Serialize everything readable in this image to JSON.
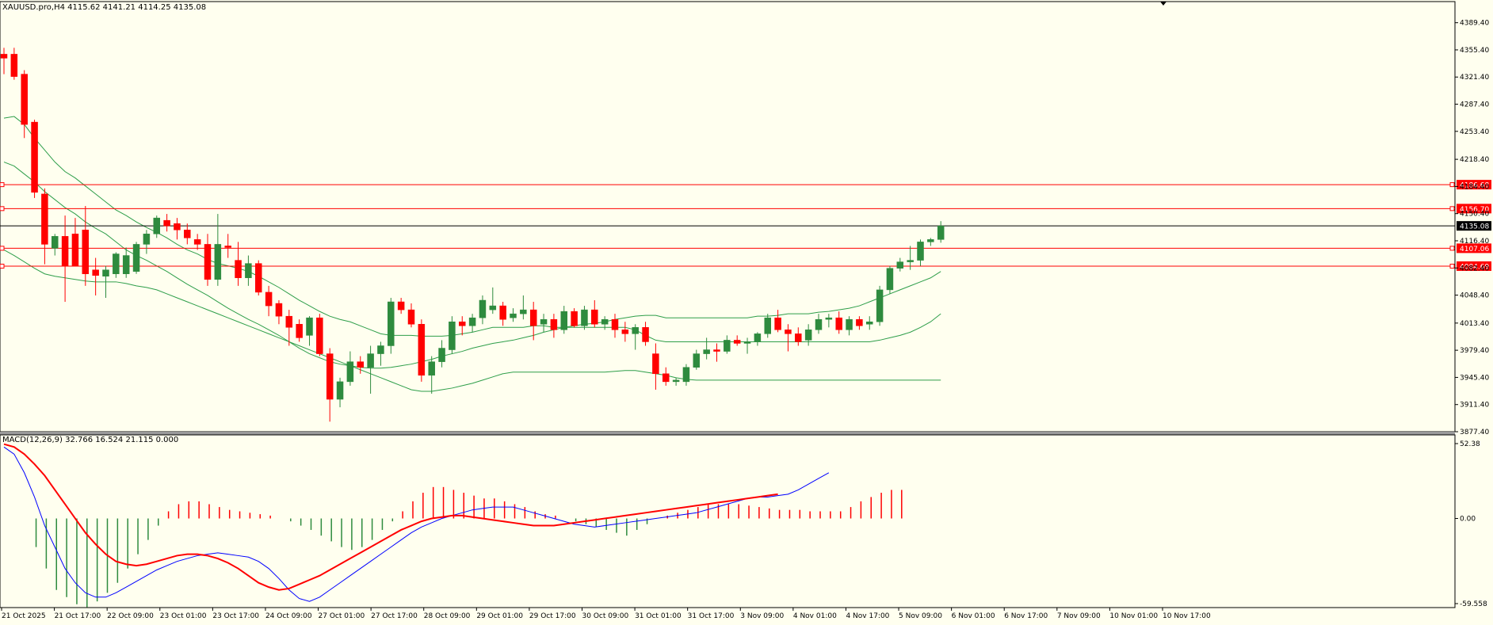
{
  "chart_header": {
    "title": "XAUUSD.pro,H4  4115.62 4141.21 4114.25 4135.08"
  },
  "indicator_header": {
    "title": "MACD(12,26,9) 32.766 16.524 21.115 0.000"
  },
  "colors": {
    "background": "#ffffef",
    "bull": "#2e8b3e",
    "bear": "#ff0000",
    "bands": "#2e9e4a",
    "level_line": "#ff0000",
    "macd_line": "#0000ff",
    "signal_line": "#ff0000",
    "current_price_line": "#000000"
  },
  "chart_data": [
    {
      "type": "candlestick",
      "symbol": "XAUUSD.pro",
      "timeframe": "H4",
      "ohlc_current": {
        "open": 4115.62,
        "high": 4141.21,
        "low": 4114.25,
        "close": 4135.08
      },
      "ylim": [
        3877.4,
        4398.0
      ],
      "price_ticks": [
        "4389.40",
        "4355.40",
        "4321.40",
        "4287.40",
        "4253.40",
        "4218.40",
        "4184.40",
        "4150.40",
        "4116.40",
        "4082.40",
        "4048.40",
        "4013.40",
        "3979.40",
        "3945.40",
        "3911.40",
        "3877.40"
      ],
      "levels": [
        {
          "value": 4186.68,
          "label": "4186.68"
        },
        {
          "value": 4156.7,
          "label": "4156.70"
        },
        {
          "value": 4107.06,
          "label": "4107.06"
        },
        {
          "value": 4084.69,
          "label": "4084.69"
        }
      ],
      "current_price": {
        "value": 4135.08,
        "label": "4135.08"
      },
      "time_labels": [
        "21 Oct 2025",
        "21 Oct 17:00",
        "22 Oct 09:00",
        "23 Oct 01:00",
        "23 Oct 17:00",
        "24 Oct 09:00",
        "27 Oct 01:00",
        "27 Oct 17:00",
        "28 Oct 09:00",
        "29 Oct 01:00",
        "29 Oct 17:00",
        "30 Oct 09:00",
        "31 Oct 01:00",
        "31 Oct 17:00",
        "3 Nov 09:00",
        "4 Nov 01:00",
        "4 Nov 17:00",
        "5 Nov 09:00",
        "6 Nov 01:00",
        "6 Nov 17:00",
        "7 Nov 09:00",
        "10 Nov 01:00",
        "10 Nov 17:00"
      ],
      "candles": [
        {
          "o": 4350,
          "h": 4358,
          "l": 4325,
          "c": 4345
        },
        {
          "o": 4350,
          "h": 4358,
          "l": 4318,
          "c": 4322
        },
        {
          "o": 4325,
          "h": 4330,
          "l": 4245,
          "c": 4262
        },
        {
          "o": 4265,
          "h": 4268,
          "l": 4170,
          "c": 4177
        },
        {
          "o": 4175,
          "h": 4182,
          "l": 4087,
          "c": 4112
        },
        {
          "o": 4107,
          "h": 4125,
          "l": 4098,
          "c": 4122
        },
        {
          "o": 4122,
          "h": 4148,
          "l": 4040,
          "c": 4085
        },
        {
          "o": 4125,
          "h": 4145,
          "l": 4085,
          "c": 4085
        },
        {
          "o": 4130,
          "h": 4160,
          "l": 4060,
          "c": 4075
        },
        {
          "o": 4080,
          "h": 4095,
          "l": 4048,
          "c": 4073
        },
        {
          "o": 4072,
          "h": 4085,
          "l": 4045,
          "c": 4080
        },
        {
          "o": 4075,
          "h": 4102,
          "l": 4070,
          "c": 4100
        },
        {
          "o": 4075,
          "h": 4108,
          "l": 4070,
          "c": 4098
        },
        {
          "o": 4078,
          "h": 4115,
          "l": 4075,
          "c": 4112
        },
        {
          "o": 4112,
          "h": 4130,
          "l": 4100,
          "c": 4125
        },
        {
          "o": 4125,
          "h": 4148,
          "l": 4120,
          "c": 4145
        },
        {
          "o": 4142,
          "h": 4150,
          "l": 4128,
          "c": 4135
        },
        {
          "o": 4138,
          "h": 4145,
          "l": 4118,
          "c": 4130
        },
        {
          "o": 4130,
          "h": 4138,
          "l": 4112,
          "c": 4120
        },
        {
          "o": 4118,
          "h": 4125,
          "l": 4105,
          "c": 4112
        },
        {
          "o": 4112,
          "h": 4125,
          "l": 4060,
          "c": 4068
        },
        {
          "o": 4068,
          "h": 4150,
          "l": 4060,
          "c": 4112
        },
        {
          "o": 4110,
          "h": 4125,
          "l": 4095,
          "c": 4108
        },
        {
          "o": 4092,
          "h": 4115,
          "l": 4060,
          "c": 4070
        },
        {
          "o": 4070,
          "h": 4098,
          "l": 4060,
          "c": 4088
        },
        {
          "o": 4088,
          "h": 4092,
          "l": 4048,
          "c": 4052
        },
        {
          "o": 4052,
          "h": 4060,
          "l": 4022,
          "c": 4035
        },
        {
          "o": 4038,
          "h": 4042,
          "l": 4012,
          "c": 4022
        },
        {
          "o": 4022,
          "h": 4030,
          "l": 3985,
          "c": 4008
        },
        {
          "o": 4012,
          "h": 4018,
          "l": 3990,
          "c": 3995
        },
        {
          "o": 3998,
          "h": 4022,
          "l": 3985,
          "c": 4020
        },
        {
          "o": 4020,
          "h": 4025,
          "l": 3972,
          "c": 3975
        },
        {
          "o": 3975,
          "h": 3982,
          "l": 3890,
          "c": 3918
        },
        {
          "o": 3918,
          "h": 3945,
          "l": 3908,
          "c": 3940
        },
        {
          "o": 3940,
          "h": 3978,
          "l": 3935,
          "c": 3965
        },
        {
          "o": 3965,
          "h": 3972,
          "l": 3950,
          "c": 3958
        },
        {
          "o": 3958,
          "h": 3985,
          "l": 3925,
          "c": 3975
        },
        {
          "o": 3975,
          "h": 3990,
          "l": 3960,
          "c": 3985
        },
        {
          "o": 3985,
          "h": 4045,
          "l": 3975,
          "c": 4040
        },
        {
          "o": 4040,
          "h": 4045,
          "l": 4025,
          "c": 4030
        },
        {
          "o": 4030,
          "h": 4038,
          "l": 4008,
          "c": 4012
        },
        {
          "o": 4012,
          "h": 4018,
          "l": 3940,
          "c": 3948
        },
        {
          "o": 3948,
          "h": 3972,
          "l": 3925,
          "c": 3965
        },
        {
          "o": 3965,
          "h": 3992,
          "l": 3958,
          "c": 3982
        },
        {
          "o": 3980,
          "h": 4022,
          "l": 3975,
          "c": 4015
        },
        {
          "o": 4015,
          "h": 4022,
          "l": 3998,
          "c": 4010
        },
        {
          "o": 4010,
          "h": 4025,
          "l": 4002,
          "c": 4020
        },
        {
          "o": 4020,
          "h": 4048,
          "l": 4012,
          "c": 4042
        },
        {
          "o": 4030,
          "h": 4058,
          "l": 4025,
          "c": 4035
        },
        {
          "o": 4035,
          "h": 4040,
          "l": 4010,
          "c": 4018
        },
        {
          "o": 4020,
          "h": 4032,
          "l": 4015,
          "c": 4025
        },
        {
          "o": 4025,
          "h": 4048,
          "l": 4018,
          "c": 4030
        },
        {
          "o": 4030,
          "h": 4040,
          "l": 3992,
          "c": 4010
        },
        {
          "o": 4012,
          "h": 4025,
          "l": 4002,
          "c": 4018
        },
        {
          "o": 4018,
          "h": 4025,
          "l": 3995,
          "c": 4005
        },
        {
          "o": 4005,
          "h": 4035,
          "l": 4000,
          "c": 4028
        },
        {
          "o": 4028,
          "h": 4032,
          "l": 4008,
          "c": 4010
        },
        {
          "o": 4010,
          "h": 4035,
          "l": 4005,
          "c": 4030
        },
        {
          "o": 4030,
          "h": 4042,
          "l": 4008,
          "c": 4012
        },
        {
          "o": 4012,
          "h": 4022,
          "l": 4005,
          "c": 4018
        },
        {
          "o": 4018,
          "h": 4025,
          "l": 3995,
          "c": 4005
        },
        {
          "o": 4005,
          "h": 4015,
          "l": 3990,
          "c": 4000
        },
        {
          "o": 4000,
          "h": 4012,
          "l": 3980,
          "c": 4008
        },
        {
          "o": 4008,
          "h": 4015,
          "l": 3985,
          "c": 3990
        },
        {
          "o": 3975,
          "h": 3988,
          "l": 3930,
          "c": 3950
        },
        {
          "o": 3950,
          "h": 3958,
          "l": 3935,
          "c": 3940
        },
        {
          "o": 3940,
          "h": 3945,
          "l": 3935,
          "c": 3942
        },
        {
          "o": 3940,
          "h": 3962,
          "l": 3935,
          "c": 3958
        },
        {
          "o": 3958,
          "h": 3980,
          "l": 3955,
          "c": 3975
        },
        {
          "o": 3975,
          "h": 3995,
          "l": 3968,
          "c": 3980
        },
        {
          "o": 3980,
          "h": 3988,
          "l": 3965,
          "c": 3978
        },
        {
          "o": 3978,
          "h": 3998,
          "l": 3975,
          "c": 3992
        },
        {
          "o": 3992,
          "h": 3998,
          "l": 3985,
          "c": 3988
        },
        {
          "o": 3988,
          "h": 3995,
          "l": 3975,
          "c": 3990
        },
        {
          "o": 3990,
          "h": 4002,
          "l": 3985,
          "c": 4000
        },
        {
          "o": 4000,
          "h": 4025,
          "l": 3995,
          "c": 4020
        },
        {
          "o": 4020,
          "h": 4030,
          "l": 4002,
          "c": 4005
        },
        {
          "o": 4005,
          "h": 4012,
          "l": 3978,
          "c": 4000
        },
        {
          "o": 4000,
          "h": 4008,
          "l": 3985,
          "c": 3990
        },
        {
          "o": 3992,
          "h": 4012,
          "l": 3985,
          "c": 4005
        },
        {
          "o": 4005,
          "h": 4025,
          "l": 4000,
          "c": 4018
        },
        {
          "o": 4018,
          "h": 4025,
          "l": 4008,
          "c": 4020
        },
        {
          "o": 4020,
          "h": 4028,
          "l": 4000,
          "c": 4005
        },
        {
          "o": 4005,
          "h": 4022,
          "l": 3998,
          "c": 4018
        },
        {
          "o": 4018,
          "h": 4022,
          "l": 4005,
          "c": 4010
        },
        {
          "o": 4012,
          "h": 4022,
          "l": 4005,
          "c": 4015
        },
        {
          "o": 4015,
          "h": 4060,
          "l": 4010,
          "c": 4055
        },
        {
          "o": 4055,
          "h": 4085,
          "l": 4050,
          "c": 4082
        },
        {
          "o": 4082,
          "h": 4095,
          "l": 4078,
          "c": 4090
        },
        {
          "o": 4090,
          "h": 4110,
          "l": 4080,
          "c": 4092
        },
        {
          "o": 4092,
          "h": 4118,
          "l": 4085,
          "c": 4115
        },
        {
          "o": 4115,
          "h": 4120,
          "l": 4110,
          "c": 4118
        },
        {
          "o": 4118,
          "h": 4141,
          "l": 4114,
          "c": 4135
        }
      ],
      "bands": {
        "x_step": 2,
        "upper": [
          4270,
          4272,
          4262,
          4245,
          4230,
          4215,
          4203,
          4195,
          4185,
          4175,
          4165,
          4155,
          4148,
          4140,
          4133,
          4127,
          4120,
          4112,
          4105,
          4100,
          4093,
          4088,
          4085,
          4082,
          4078,
          4072,
          4065,
          4058,
          4050,
          4042,
          4035,
          4028,
          4022,
          4018,
          4015,
          4010,
          4005,
          4000,
          3998,
          3998,
          3998,
          3997,
          3997,
          3997,
          3998,
          4000,
          4002,
          4005,
          4008,
          4008,
          4008,
          4008,
          4010,
          4010,
          4008,
          4008,
          4008,
          4008,
          4008,
          4008,
          4008,
          4008,
          4005,
          3998,
          3992,
          3990,
          3990,
          3990,
          3990,
          3990,
          3990,
          3990,
          3990,
          3990,
          3990,
          3990,
          3990,
          3990,
          3990,
          3990,
          3990,
          3990,
          3990,
          3990,
          3990,
          3990,
          3992,
          3995,
          3998,
          4002,
          4008,
          4015,
          4025
        ],
        "middle": [
          4215,
          4210,
          4200,
          4190,
          4178,
          4168,
          4158,
          4150,
          4140,
          4132,
          4125,
          4115,
          4105,
          4098,
          4092,
          4085,
          4078,
          4070,
          4062,
          4055,
          4048,
          4040,
          4032,
          4025,
          4018,
          4012,
          4005,
          3998,
          3990,
          3982,
          3975,
          3970,
          3965,
          3962,
          3960,
          3958,
          3957,
          3957,
          3958,
          3960,
          3962,
          3965,
          3968,
          3972,
          3975,
          3978,
          3982,
          3985,
          3988,
          3990,
          3992,
          3995,
          3998,
          4002,
          4005,
          4008,
          4010,
          4012,
          4013,
          4015,
          4018,
          4020,
          4022,
          4023,
          4023,
          4020,
          4020,
          4020,
          4020,
          4020,
          4020,
          4020,
          4020,
          4020,
          4022,
          4022,
          4023,
          4025,
          4025,
          4025,
          4027,
          4028,
          4030,
          4032,
          4035,
          4040,
          4045,
          4050,
          4055,
          4060,
          4065,
          4070,
          4078
        ],
        "lower": [
          4105,
          4098,
          4090,
          4082,
          4075,
          4072,
          4070,
          4068,
          4066,
          4065,
          4065,
          4065,
          4063,
          4060,
          4058,
          4055,
          4050,
          4045,
          4040,
          4035,
          4030,
          4025,
          4020,
          4015,
          4010,
          4005,
          4000,
          3995,
          3990,
          3985,
          3980,
          3975,
          3970,
          3965,
          3960,
          3955,
          3950,
          3945,
          3940,
          3935,
          3930,
          3928,
          3928,
          3930,
          3932,
          3935,
          3938,
          3942,
          3946,
          3950,
          3952,
          3952,
          3952,
          3952,
          3952,
          3952,
          3952,
          3952,
          3952,
          3952,
          3953,
          3954,
          3954,
          3952,
          3950,
          3948,
          3945,
          3943,
          3942,
          3942,
          3942,
          3942,
          3942,
          3942,
          3942,
          3942,
          3942,
          3942,
          3942,
          3942,
          3942,
          3942,
          3942,
          3942,
          3942,
          3942,
          3942,
          3942,
          3942,
          3942,
          3942,
          3942,
          3942
        ]
      }
    },
    {
      "type": "macd",
      "name": "MACD(12,26,9)",
      "values_current": {
        "macd": 32.766,
        "signal": 16.524,
        "histogram": 21.115,
        "extra": 0.0
      },
      "ylim": [
        -59.558,
        52.38
      ],
      "y_ticks": [
        "52.38",
        "0.00",
        "-59.558"
      ],
      "histogram": [
        0,
        0,
        0,
        -20,
        -35,
        -50,
        -55,
        -60,
        -62,
        -58,
        -52,
        -45,
        -35,
        -25,
        -15,
        -5,
        5,
        10,
        12,
        12,
        10,
        8,
        6,
        5,
        4,
        3,
        2,
        0,
        -2,
        -5,
        -8,
        -12,
        -16,
        -20,
        -22,
        -20,
        -15,
        -8,
        -2,
        5,
        12,
        18,
        22,
        22,
        20,
        18,
        16,
        14,
        14,
        12,
        10,
        8,
        5,
        3,
        2,
        0,
        -2,
        -4,
        -6,
        -8,
        -10,
        -12,
        -8,
        -4,
        0,
        2,
        4,
        6,
        8,
        10,
        10,
        10,
        10,
        9,
        8,
        7,
        6,
        6,
        6,
        5,
        5,
        5,
        5,
        8,
        12,
        15,
        18,
        20,
        20
      ],
      "macd_line": [
        50,
        45,
        32,
        15,
        -5,
        -20,
        -35,
        -45,
        -52,
        -55,
        -55,
        -52,
        -48,
        -44,
        -40,
        -36,
        -33,
        -30,
        -28,
        -26,
        -25,
        -24,
        -25,
        -26,
        -27,
        -30,
        -35,
        -42,
        -50,
        -56,
        -58,
        -55,
        -50,
        -45,
        -40,
        -35,
        -30,
        -25,
        -20,
        -15,
        -10,
        -6,
        -3,
        0,
        2,
        4,
        6,
        7,
        8,
        8,
        8,
        6,
        4,
        2,
        0,
        -2,
        -4,
        -5,
        -6,
        -5,
        -4,
        -3,
        -2,
        -1,
        0,
        1,
        2,
        3,
        4,
        6,
        8,
        10,
        12,
        14,
        15,
        15,
        16,
        17,
        20,
        24,
        28,
        32
      ],
      "signal_line": [
        52,
        50,
        45,
        38,
        30,
        20,
        10,
        0,
        -10,
        -18,
        -25,
        -30,
        -32,
        -33,
        -32,
        -30,
        -28,
        -26,
        -25,
        -25,
        -26,
        -28,
        -31,
        -35,
        -40,
        -45,
        -48,
        -50,
        -49,
        -46,
        -43,
        -40,
        -36,
        -32,
        -28,
        -24,
        -20,
        -16,
        -12,
        -8,
        -5,
        -2,
        0,
        1,
        2,
        2,
        1,
        0,
        -1,
        -2,
        -3,
        -4,
        -5,
        -5,
        -5,
        -4,
        -3,
        -2,
        -1,
        0,
        1,
        2,
        3,
        4,
        5,
        6,
        7,
        8,
        9,
        10,
        11,
        12,
        13,
        14,
        15,
        16,
        17
      ]
    }
  ]
}
